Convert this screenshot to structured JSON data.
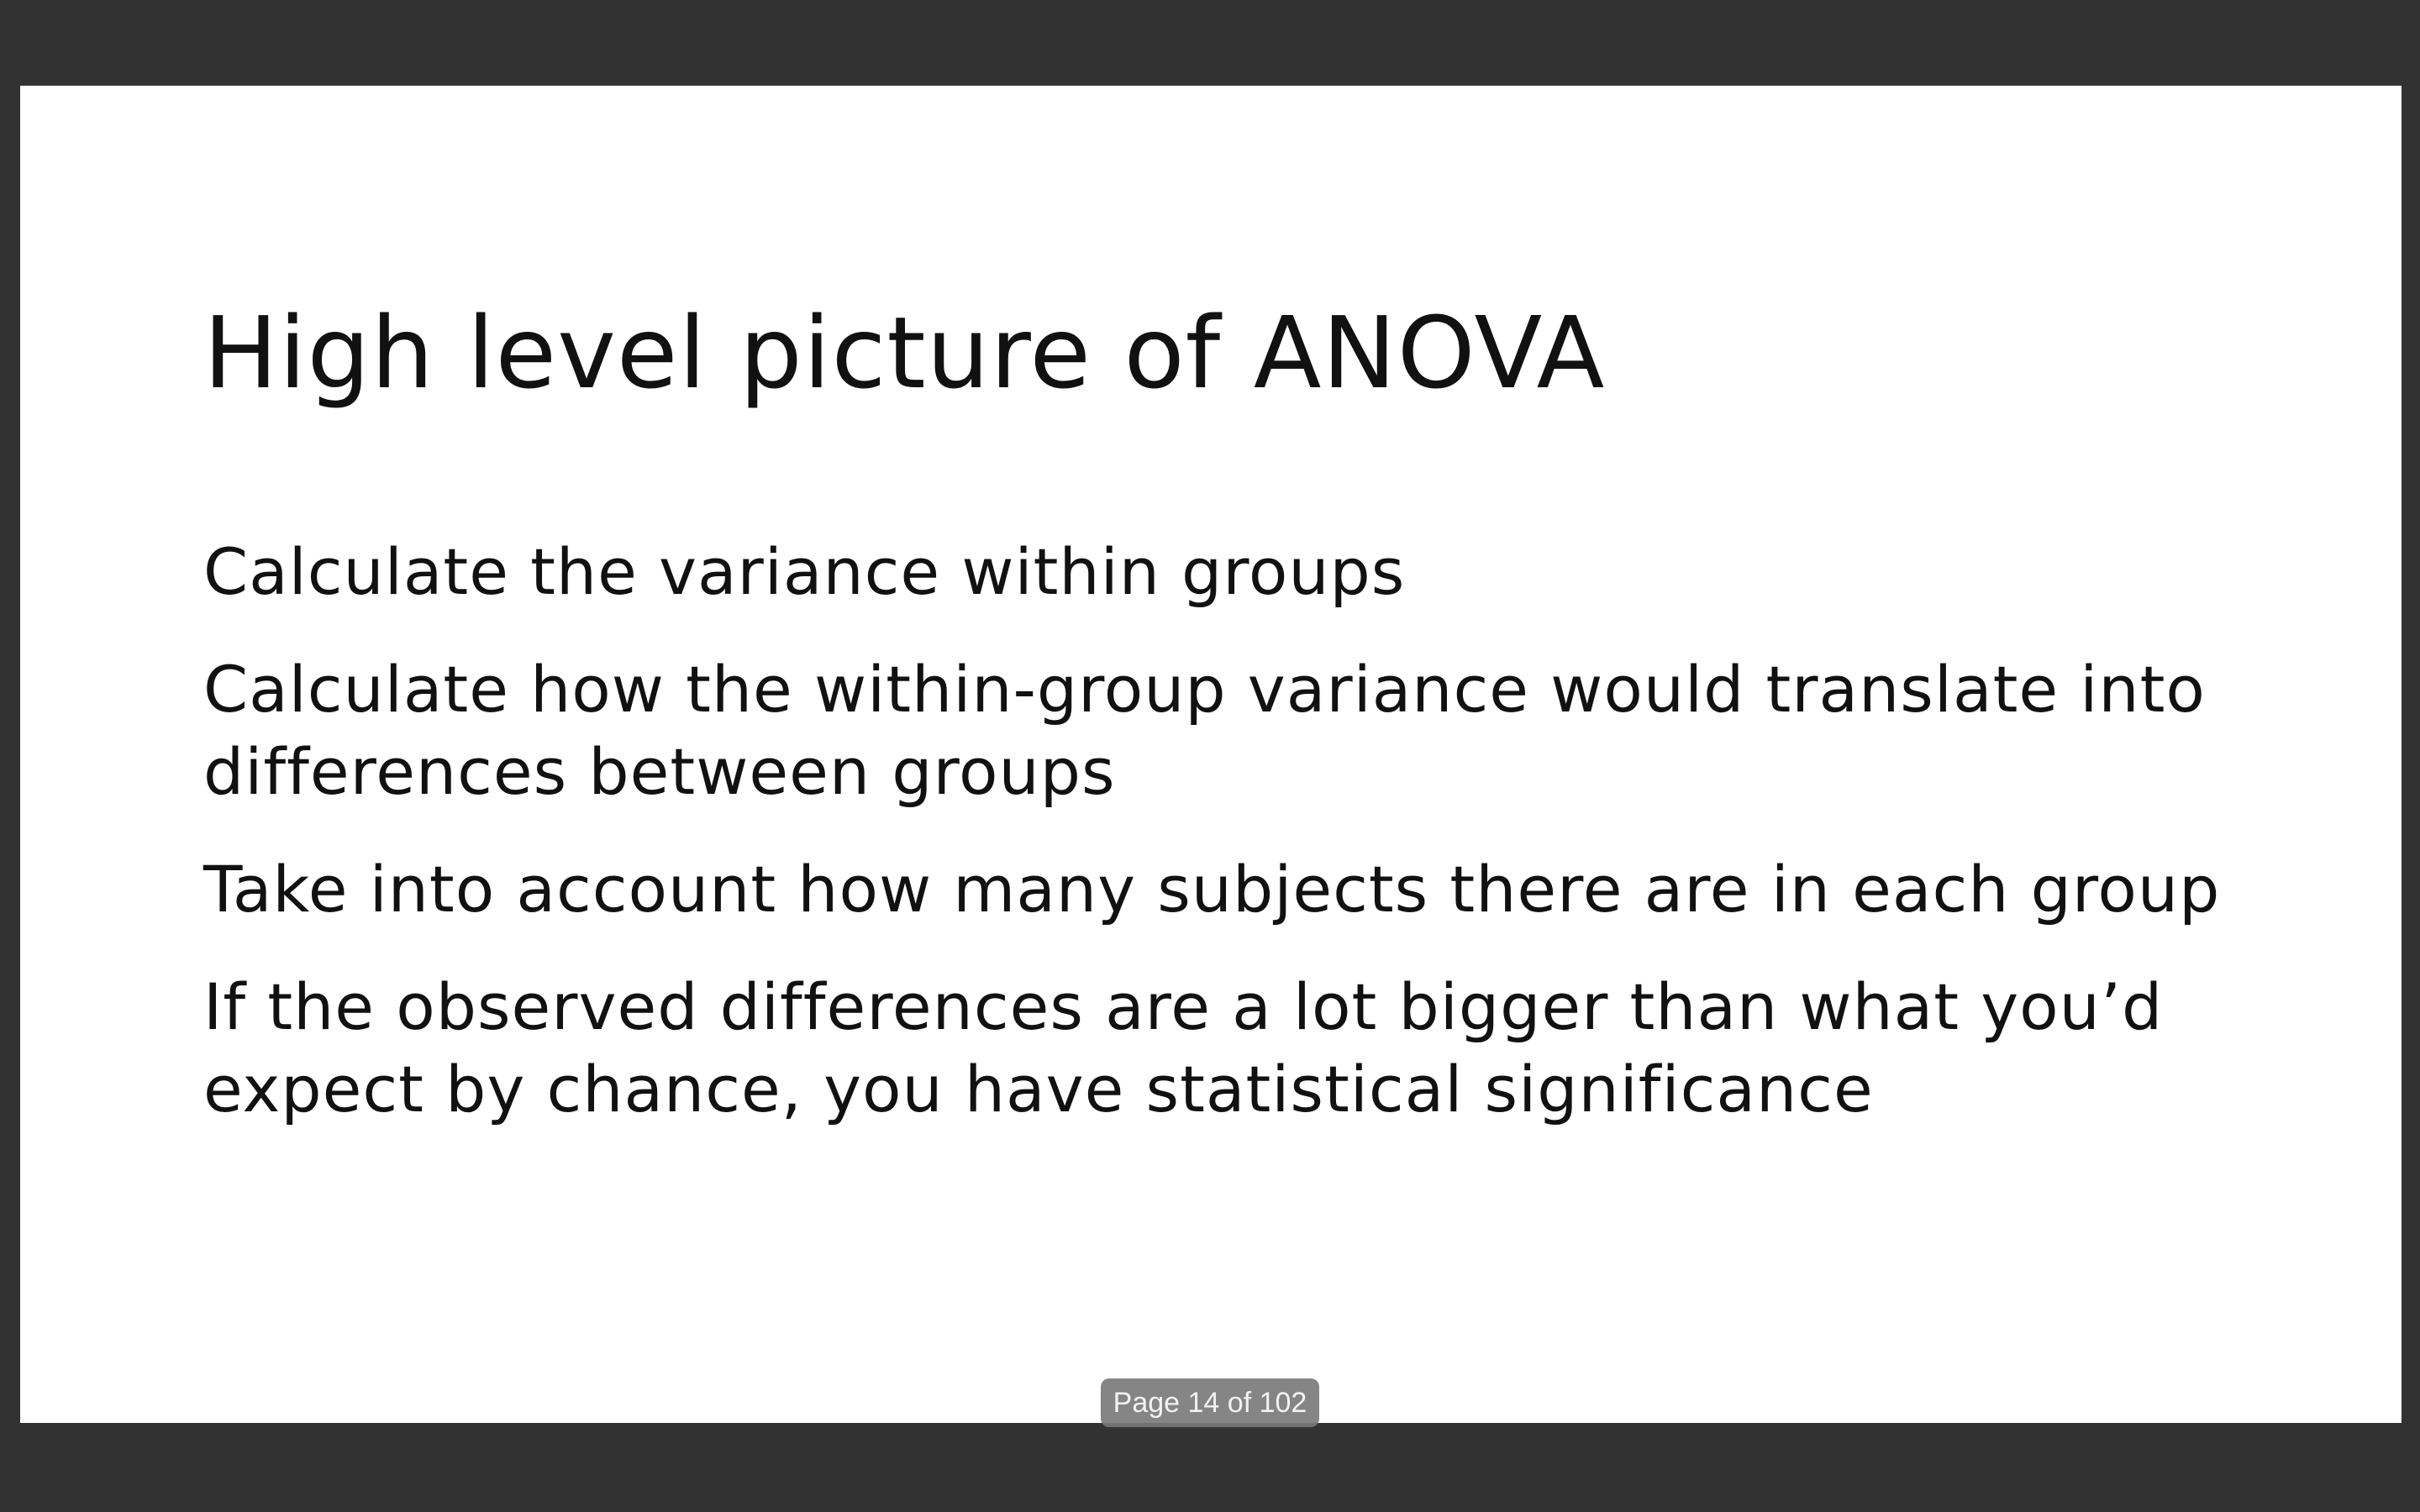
{
  "slide": {
    "title": "High level picture of ANOVA",
    "bullets": [
      "Calculate the variance within groups",
      "Calculate how the within-group variance would translate into differences between groups",
      "Take into account how many subjects there are in each group",
      "If the observed differences are a lot bigger than what you’d expect by chance, you have statistical significance"
    ]
  },
  "viewer": {
    "page_indicator": "Page 14 of 102",
    "current_page": 14,
    "total_pages": 102
  }
}
